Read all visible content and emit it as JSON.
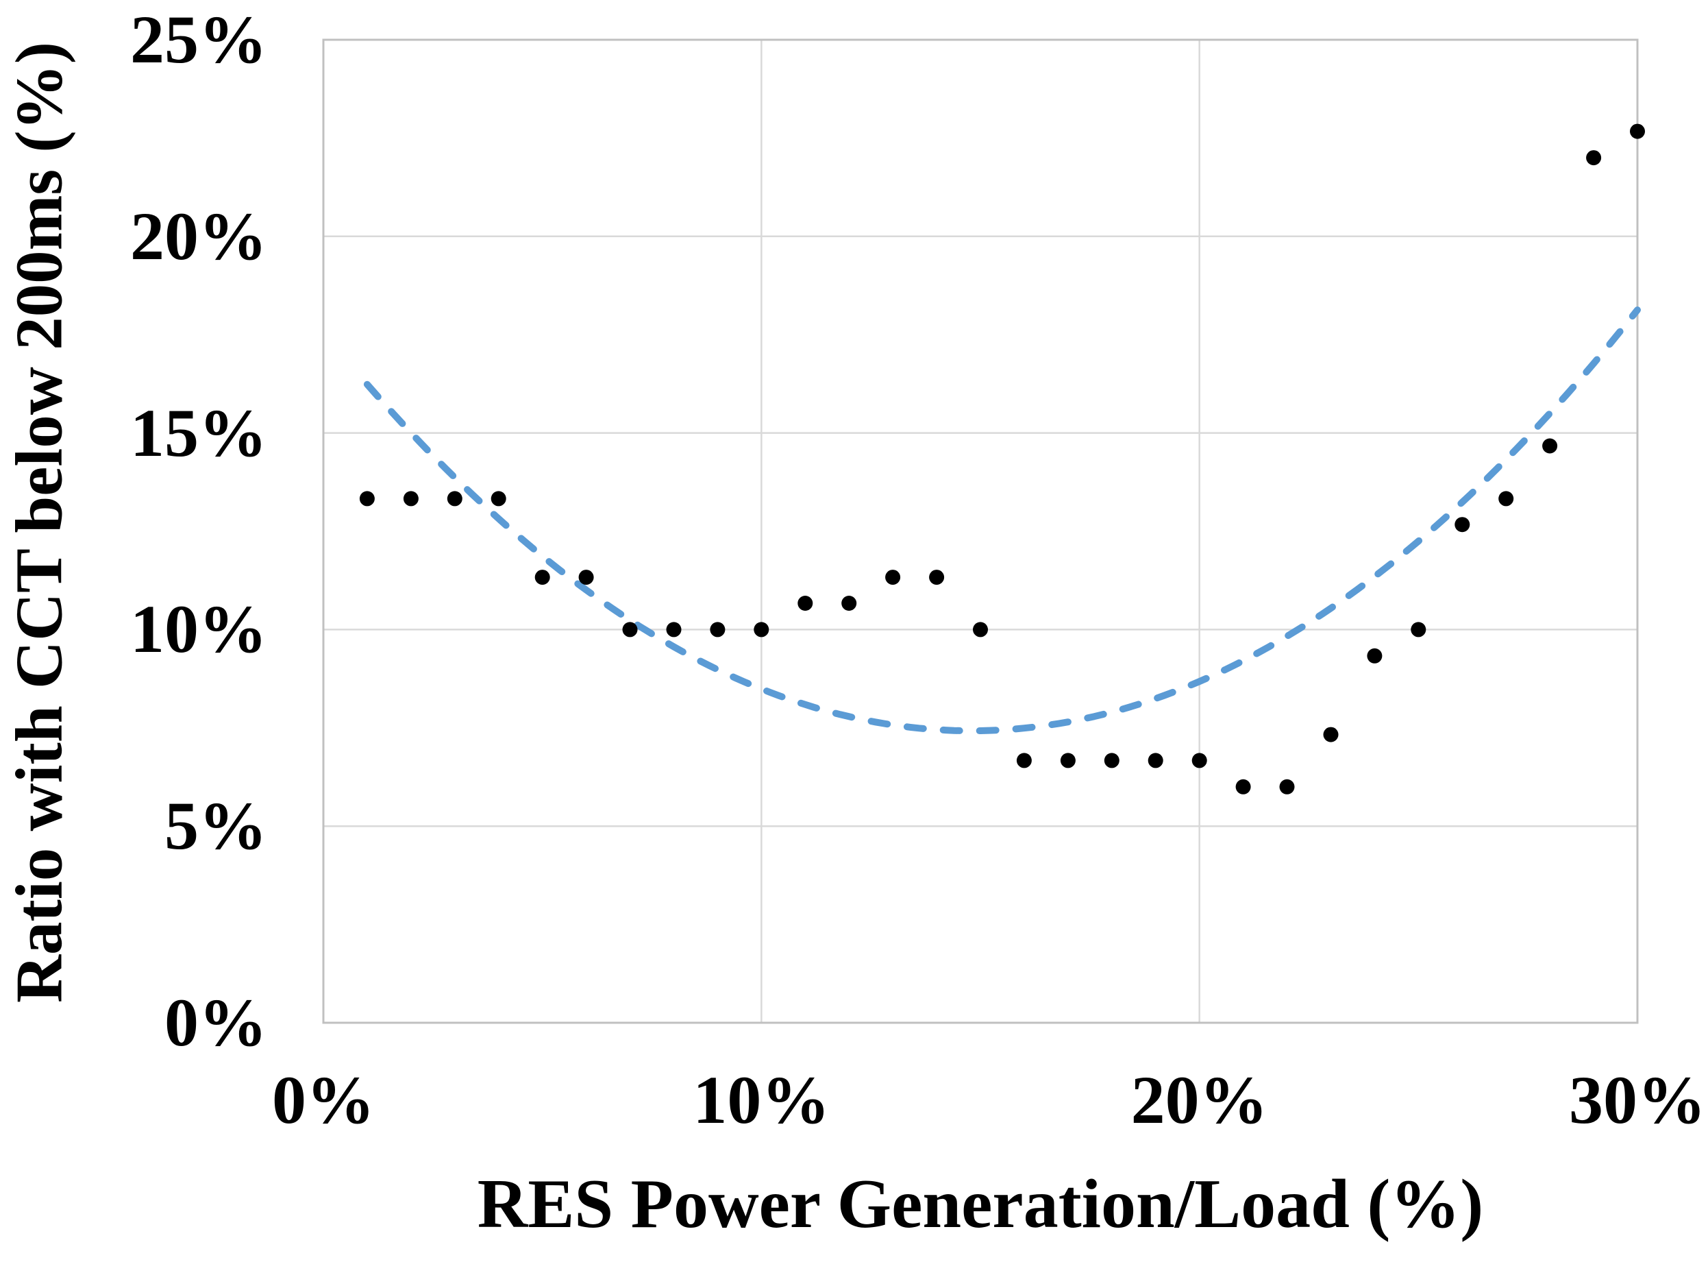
{
  "chart_data": {
    "type": "scatter",
    "title": "",
    "xlabel": "RES Power Generation/Load (%)",
    "ylabel": "Ratio with CCT below 200ms (%)",
    "xlim": [
      0,
      30
    ],
    "ylim": [
      0,
      25
    ],
    "grid": true,
    "legend": "none",
    "x_ticks": [
      {
        "value": 0,
        "label": "0%"
      },
      {
        "value": 10,
        "label": "10%"
      },
      {
        "value": 20,
        "label": "20%"
      },
      {
        "value": 30,
        "label": "30%"
      }
    ],
    "y_ticks": [
      {
        "value": 0,
        "label": "0%"
      },
      {
        "value": 5,
        "label": "5%"
      },
      {
        "value": 10,
        "label": "10%"
      },
      {
        "value": 15,
        "label": "15%"
      },
      {
        "value": 20,
        "label": "20%"
      },
      {
        "value": 25,
        "label": "25%"
      }
    ],
    "points": [
      {
        "x": 1,
        "y": 13.33
      },
      {
        "x": 2,
        "y": 13.33
      },
      {
        "x": 3,
        "y": 13.33
      },
      {
        "x": 4,
        "y": 13.33
      },
      {
        "x": 5,
        "y": 11.33
      },
      {
        "x": 6,
        "y": 11.33
      },
      {
        "x": 7,
        "y": 10.0
      },
      {
        "x": 8,
        "y": 10.0
      },
      {
        "x": 9,
        "y": 10.0
      },
      {
        "x": 10,
        "y": 10.0
      },
      {
        "x": 11,
        "y": 10.67
      },
      {
        "x": 12,
        "y": 10.67
      },
      {
        "x": 13,
        "y": 11.33
      },
      {
        "x": 14,
        "y": 11.33
      },
      {
        "x": 15,
        "y": 10.0
      },
      {
        "x": 16,
        "y": 6.67
      },
      {
        "x": 17,
        "y": 6.67
      },
      {
        "x": 18,
        "y": 6.67
      },
      {
        "x": 19,
        "y": 6.67
      },
      {
        "x": 20,
        "y": 6.67
      },
      {
        "x": 21,
        "y": 6.0
      },
      {
        "x": 22,
        "y": 6.0
      },
      {
        "x": 23,
        "y": 7.33
      },
      {
        "x": 24,
        "y": 9.33
      },
      {
        "x": 25,
        "y": 10.0
      },
      {
        "x": 26,
        "y": 12.67
      },
      {
        "x": 27,
        "y": 13.33
      },
      {
        "x": 28,
        "y": 14.67
      },
      {
        "x": 29,
        "y": 22.0
      },
      {
        "x": 30,
        "y": 22.67
      }
    ],
    "trendline": {
      "type": "polynomial",
      "order": 2,
      "coefficients": {
        "a": 0.0463,
        "b": -1.37,
        "c": 17.56
      },
      "x_range": [
        1,
        30
      ],
      "color": "#5b9bd5",
      "dash": [
        24,
        29
      ],
      "width": 10
    },
    "point_style": {
      "radius": 11,
      "color": "#000000"
    },
    "colors": {
      "dot": "#000000",
      "trend": "#5b9bd5",
      "gridline": "#d9d9d9",
      "border": "#c0c0c0",
      "text": "#000000",
      "background": "#ffffff"
    }
  }
}
